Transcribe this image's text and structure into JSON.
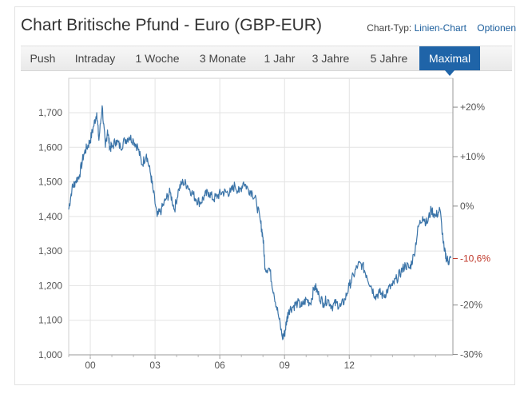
{
  "header": {
    "title": "Chart Britische Pfund - Euro (GBP-EUR)",
    "chart_type_label": "Chart-Typ:",
    "chart_type_value": "Linien-Chart",
    "options_label": "Optionen"
  },
  "tabs": [
    {
      "label": "Push",
      "active": false
    },
    {
      "label": "Intraday",
      "active": false
    },
    {
      "label": "1 Woche",
      "active": false
    },
    {
      "label": "3 Monate",
      "active": false
    },
    {
      "label": "1 Jahr",
      "active": false
    },
    {
      "label": "3 Jahre",
      "active": false
    },
    {
      "label": "5 Jahre",
      "active": false
    },
    {
      "label": "Maximal",
      "active": true
    }
  ],
  "colors": {
    "line": "#3b74a8",
    "active_tab": "#1f64a8",
    "current_marker": "#c0392b",
    "link": "#1a5d9c"
  },
  "chart_data": {
    "type": "line",
    "title": "Chart Britische Pfund - Euro (GBP-EUR)",
    "xlabel": "",
    "ylabel": "",
    "xlim": [
      1999.0,
      2016.8
    ],
    "ylim": [
      1.0,
      1.7
    ],
    "y_ticks": [
      1.0,
      1.1,
      1.2,
      1.3,
      1.4,
      1.5,
      1.6,
      1.7
    ],
    "y_tick_labels": [
      "1,000",
      "1,100",
      "1,200",
      "1,300",
      "1,400",
      "1,500",
      "1,600",
      "1,700"
    ],
    "x_ticks": [
      2000,
      2003,
      2006,
      2009,
      2012
    ],
    "x_tick_labels": [
      "00",
      "03",
      "06",
      "09",
      "12"
    ],
    "right_axis": {
      "reference": 1.43,
      "ticks": [
        0.2,
        0.1,
        0.0,
        -0.2,
        -0.3
      ],
      "tick_labels": [
        "+20%",
        "+10%",
        "0%",
        "-20%",
        "-30%"
      ],
      "current_label": "-10,6%",
      "current_value": -0.106
    },
    "grid": true,
    "series": [
      {
        "x": [
          1999.0,
          1999.15,
          1999.3,
          1999.5,
          1999.7,
          1999.85,
          2000.0,
          2000.15,
          2000.3,
          2000.4,
          2000.55,
          2000.7,
          2000.8,
          2000.9,
          2001.0,
          2001.2,
          2001.4,
          2001.6,
          2001.8,
          2002.0,
          2002.2,
          2002.4,
          2002.6,
          2002.8,
          2002.9,
          2003.1,
          2003.3,
          2003.5,
          2003.7,
          2003.9,
          2004.1,
          2004.3,
          2004.5,
          2004.7,
          2004.9,
          2005.1,
          2005.3,
          2005.5,
          2005.7,
          2005.9,
          2006.1,
          2006.3,
          2006.5,
          2006.7,
          2006.9,
          2007.1,
          2007.3,
          2007.5,
          2007.7,
          2007.9,
          2008.0,
          2008.1,
          2008.3,
          2008.5,
          2008.7,
          2008.9,
          2009.0,
          2009.1,
          2009.2,
          2009.4,
          2009.6,
          2009.8,
          2010.0,
          2010.2,
          2010.4,
          2010.6,
          2010.8,
          2011.0,
          2011.2,
          2011.4,
          2011.6,
          2011.8,
          2012.0,
          2012.2,
          2012.4,
          2012.6,
          2012.8,
          2013.0,
          2013.2,
          2013.4,
          2013.6,
          2013.8,
          2014.0,
          2014.2,
          2014.4,
          2014.6,
          2014.8,
          2015.0,
          2015.2,
          2015.4,
          2015.6,
          2015.8,
          2016.0,
          2016.2,
          2016.4,
          2016.5,
          2016.6,
          2016.7
        ],
        "values": [
          1.42,
          1.48,
          1.5,
          1.52,
          1.58,
          1.6,
          1.62,
          1.66,
          1.7,
          1.62,
          1.72,
          1.6,
          1.65,
          1.6,
          1.6,
          1.62,
          1.6,
          1.62,
          1.63,
          1.62,
          1.6,
          1.55,
          1.58,
          1.52,
          1.48,
          1.4,
          1.42,
          1.45,
          1.47,
          1.42,
          1.48,
          1.5,
          1.49,
          1.47,
          1.45,
          1.44,
          1.46,
          1.47,
          1.45,
          1.46,
          1.47,
          1.47,
          1.47,
          1.49,
          1.47,
          1.5,
          1.48,
          1.47,
          1.44,
          1.38,
          1.34,
          1.25,
          1.25,
          1.18,
          1.12,
          1.05,
          1.06,
          1.1,
          1.13,
          1.14,
          1.15,
          1.14,
          1.16,
          1.15,
          1.2,
          1.17,
          1.15,
          1.16,
          1.14,
          1.15,
          1.14,
          1.16,
          1.2,
          1.23,
          1.26,
          1.26,
          1.23,
          1.2,
          1.17,
          1.18,
          1.17,
          1.19,
          1.2,
          1.22,
          1.24,
          1.26,
          1.25,
          1.29,
          1.37,
          1.4,
          1.38,
          1.42,
          1.4,
          1.42,
          1.3,
          1.28,
          1.27,
          1.28
        ]
      }
    ]
  }
}
